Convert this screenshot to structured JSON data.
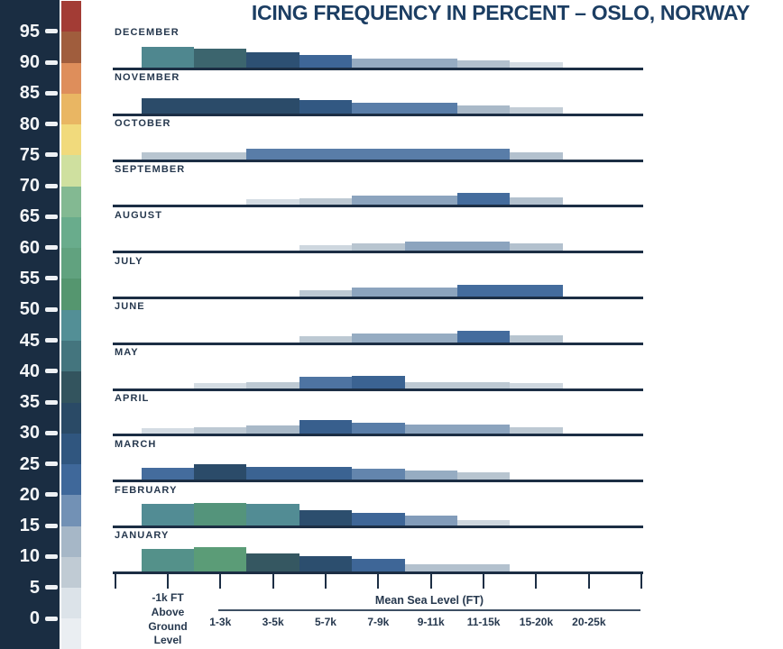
{
  "title": "ICING FREQUENCY IN PERCENT – OSLO, NORWAY",
  "legend": {
    "tick_values": [
      95,
      90,
      85,
      80,
      75,
      70,
      65,
      60,
      55,
      50,
      45,
      40,
      35,
      30,
      25,
      20,
      15,
      10,
      5,
      0
    ],
    "panel_bg": "#1a2d42",
    "number_color": "#f4f6f8",
    "tick_dash_color": "#eef1f4",
    "below_zero_color": "#eaeef2",
    "band_colors": [
      {
        "range": "0-5",
        "color": "#dce3e9"
      },
      {
        "range": "5-10",
        "color": "#c0cbd4"
      },
      {
        "range": "10-15",
        "color": "#a6b7c7"
      },
      {
        "range": "15-20",
        "color": "#7291b5"
      },
      {
        "range": "20-25",
        "color": "#3f689a"
      },
      {
        "range": "25-30",
        "color": "#30567f"
      },
      {
        "range": "30-35",
        "color": "#2a4a66"
      },
      {
        "range": "35-40",
        "color": "#33545e"
      },
      {
        "range": "40-45",
        "color": "#44757e"
      },
      {
        "range": "45-50",
        "color": "#538f96"
      },
      {
        "range": "50-55",
        "color": "#55966f"
      },
      {
        "range": "55-60",
        "color": "#61a27f"
      },
      {
        "range": "60-65",
        "color": "#69ac8c"
      },
      {
        "range": "65-70",
        "color": "#83b992"
      },
      {
        "range": "70-75",
        "color": "#cfe09f"
      },
      {
        "range": "75-80",
        "color": "#f1da7c"
      },
      {
        "range": "80-85",
        "color": "#e9b663"
      },
      {
        "range": "85-90",
        "color": "#de8e5b"
      },
      {
        "range": "90-95",
        "color": "#a05d3d"
      },
      {
        "range": "95-100",
        "color": "#a33c35"
      }
    ]
  },
  "axis": {
    "ground_label_lines": [
      "-1k FT",
      "Above",
      "Ground",
      "Level"
    ],
    "sea_level_label": "Mean Sea Level (FT)",
    "altitude_labels": [
      "1-3k",
      "3-5k",
      "5-7k",
      "7-9k",
      "9-11k",
      "11-15k",
      "15-20k",
      "20-25k"
    ],
    "ink_color": "#1c2e44"
  },
  "chart_data": {
    "type": "bar",
    "title": "ICING FREQUENCY IN PERCENT – OSLO, NORWAY",
    "unit": "percent icing frequency",
    "xlabel": "Mean Sea Level (FT)",
    "categories": [
      "-1k FT Above Ground Level",
      "1-3k",
      "3-5k",
      "5-7k",
      "7-9k",
      "9-11k",
      "11-15k",
      "15-20k",
      "20-25k"
    ],
    "value_encoding": "each month is a row of altitude-bin bars; bar height and bar color both encode icing frequency percent on the 0-95 legend color scale",
    "legend_scale": {
      "min": 0,
      "max": 100,
      "step": 5
    },
    "series": [
      {
        "name": "DECEMBER",
        "values": [
          46,
          40,
          30,
          23,
          14,
          14,
          10,
          4,
          0
        ]
      },
      {
        "name": "NOVEMBER",
        "values": [
          32,
          32,
          32,
          27,
          20,
          20,
          12,
          7,
          0
        ]
      },
      {
        "name": "OCTOBER",
        "values": [
          9,
          9,
          20,
          20,
          20,
          20,
          20,
          10,
          0
        ]
      },
      {
        "name": "SEPTEMBER",
        "values": [
          0,
          0,
          4,
          8,
          15,
          15,
          22,
          10,
          0
        ]
      },
      {
        "name": "AUGUST",
        "values": [
          0,
          0,
          0,
          5,
          9,
          15,
          15,
          10,
          0
        ]
      },
      {
        "name": "JULY",
        "values": [
          0,
          0,
          0,
          8,
          15,
          15,
          22,
          22,
          0
        ]
      },
      {
        "name": "JUNE",
        "values": [
          0,
          0,
          0,
          8,
          14,
          14,
          22,
          9,
          0
        ]
      },
      {
        "name": "MAY",
        "values": [
          0,
          4,
          8,
          21,
          24,
          8,
          8,
          5,
          0
        ]
      },
      {
        "name": "APRIL",
        "values": [
          4,
          8,
          12,
          25,
          20,
          15,
          15,
          8,
          0
        ]
      },
      {
        "name": "MARCH",
        "values": [
          22,
          32,
          24,
          24,
          19,
          14,
          9,
          0,
          0
        ]
      },
      {
        "name": "FEBRUARY",
        "values": [
          47,
          51,
          47,
          31,
          23,
          16,
          5,
          0,
          0
        ]
      },
      {
        "name": "JANUARY",
        "values": [
          49,
          55,
          38,
          31,
          23,
          10,
          10,
          0,
          0
        ]
      }
    ]
  }
}
